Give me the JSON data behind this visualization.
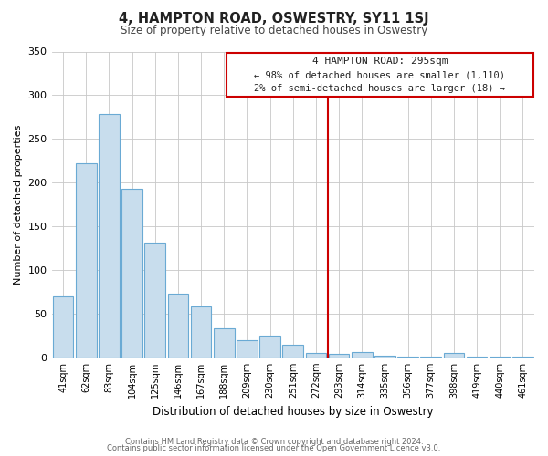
{
  "title": "4, HAMPTON ROAD, OSWESTRY, SY11 1SJ",
  "subtitle": "Size of property relative to detached houses in Oswestry",
  "xlabel": "Distribution of detached houses by size in Oswestry",
  "ylabel": "Number of detached properties",
  "categories": [
    "41sqm",
    "62sqm",
    "83sqm",
    "104sqm",
    "125sqm",
    "146sqm",
    "167sqm",
    "188sqm",
    "209sqm",
    "230sqm",
    "251sqm",
    "272sqm",
    "293sqm",
    "314sqm",
    "335sqm",
    "356sqm",
    "377sqm",
    "398sqm",
    "419sqm",
    "440sqm",
    "461sqm"
  ],
  "values": [
    70,
    222,
    278,
    193,
    131,
    73,
    58,
    33,
    20,
    25,
    14,
    5,
    4,
    6,
    2,
    1,
    1,
    5,
    1,
    1,
    1
  ],
  "bar_color": "#c8dded",
  "bar_edge_color": "#6aaad4",
  "marker_line_color": "#cc0000",
  "annotation_line1": "4 HAMPTON ROAD: 295sqm",
  "annotation_line2": "← 98% of detached houses are smaller (1,110)",
  "annotation_line3": "2% of semi-detached houses are larger (18) →",
  "ylim": [
    0,
    350
  ],
  "yticks": [
    0,
    50,
    100,
    150,
    200,
    250,
    300,
    350
  ],
  "footer_line1": "Contains HM Land Registry data © Crown copyright and database right 2024.",
  "footer_line2": "Contains public sector information licensed under the Open Government Licence v3.0.",
  "background_color": "#ffffff",
  "grid_color": "#c8c8c8"
}
